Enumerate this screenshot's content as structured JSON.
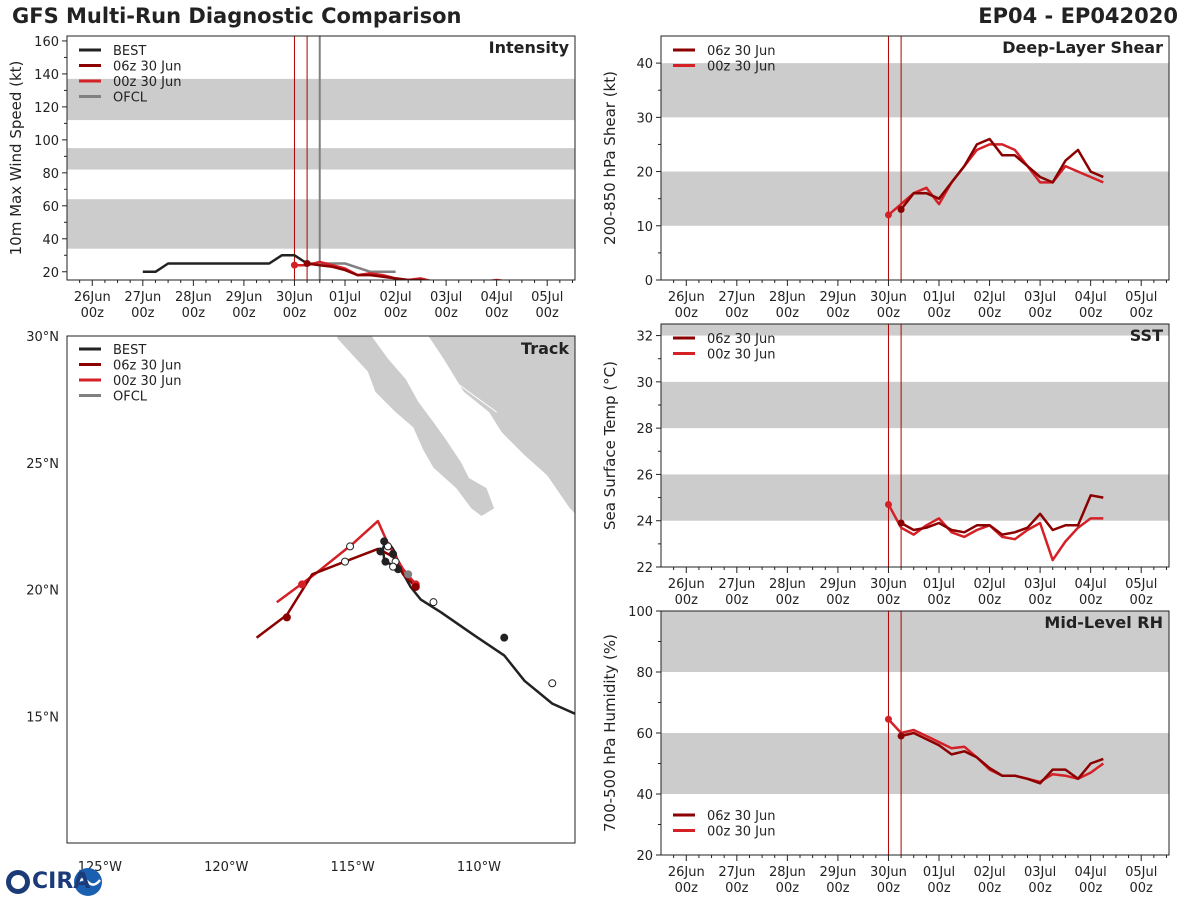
{
  "header": {
    "title": "GFS Multi-Run Diagnostic Comparison",
    "storm_id": "EP04 - EP042020"
  },
  "logo": {
    "text": "CIRA",
    "emblem": "ra-wave-emblem-icon"
  },
  "colors": {
    "best": "#222222",
    "run_06z": "#8b0000",
    "run_00z": "#d42027",
    "ofcl": "#808080",
    "band": "#cccccc",
    "land": "#cccccc",
    "vline": "#b00000",
    "ofcl_vline": "#808080"
  },
  "time_axis": {
    "ticks": [
      {
        "day": 26,
        "l1": "26Jun",
        "l2": "00z"
      },
      {
        "day": 27,
        "l1": "27Jun",
        "l2": "00z"
      },
      {
        "day": 28,
        "l1": "28Jun",
        "l2": "00z"
      },
      {
        "day": 29,
        "l1": "29Jun",
        "l2": "00z"
      },
      {
        "day": 30,
        "l1": "30Jun",
        "l2": "00z"
      },
      {
        "day": 31,
        "l1": "01Jul",
        "l2": "00z"
      },
      {
        "day": 32,
        "l1": "02Jul",
        "l2": "00z"
      },
      {
        "day": 33,
        "l1": "03Jul",
        "l2": "00z"
      },
      {
        "day": 34,
        "l1": "04Jul",
        "l2": "00z"
      },
      {
        "day": 35,
        "l1": "05Jul",
        "l2": "00z"
      }
    ]
  },
  "chart_data": [
    {
      "id": "intensity",
      "type": "line",
      "title": "Intensity",
      "ylabel": "10m Max Wind Speed (kt)",
      "xlim": [
        25.5,
        35.55
      ],
      "ylim": [
        15,
        163
      ],
      "yticks": [
        20,
        40,
        60,
        80,
        100,
        120,
        140,
        160
      ],
      "bands": [
        [
          34,
          64
        ],
        [
          82,
          95
        ],
        [
          112,
          137
        ]
      ],
      "vlines": [
        {
          "x": 30.0,
          "kind": "run"
        },
        {
          "x": 30.25,
          "kind": "run"
        },
        {
          "x": 30.5,
          "kind": "ofcl"
        }
      ],
      "legend": [
        "BEST",
        "06z 30 Jun",
        "00z 30 Jun",
        "OFCL"
      ],
      "series": [
        {
          "name": "BEST",
          "color_key": "best",
          "x": [
            27.0,
            27.25,
            27.5,
            27.75,
            28.0,
            28.25,
            28.5,
            28.75,
            29.0,
            29.25,
            29.5,
            29.75,
            30.0,
            30.25
          ],
          "y": [
            20,
            20,
            25,
            25,
            25,
            25,
            25,
            25,
            25,
            25,
            25,
            30,
            30,
            25
          ]
        },
        {
          "name": "OFCL",
          "color_key": "ofcl",
          "x": [
            30.25,
            30.5,
            31.0,
            31.5,
            32.0
          ],
          "y": [
            25,
            25,
            25,
            20,
            20
          ]
        },
        {
          "name": "00z 30 Jun",
          "color_key": "run_00z",
          "x": [
            30.0,
            30.25,
            30.5,
            30.75,
            31.0,
            31.25,
            31.5,
            31.75,
            32.0,
            32.25,
            32.5,
            32.75,
            33.0,
            33.25,
            33.5,
            33.75,
            34.0,
            34.25
          ],
          "y": [
            24,
            24,
            26,
            24,
            22,
            18,
            19,
            18,
            16,
            15,
            16,
            14,
            14,
            14,
            14,
            14,
            15,
            14
          ]
        },
        {
          "name": "06z 30 Jun",
          "color_key": "run_06z",
          "x": [
            30.25,
            30.5,
            30.75,
            31.0,
            31.25,
            31.5,
            31.75,
            32.0,
            32.25,
            32.5,
            32.75,
            33.0,
            33.25,
            33.5,
            33.75,
            34.0,
            34.25
          ],
          "y": [
            25,
            24,
            23,
            21,
            18,
            18,
            17,
            16,
            15,
            15,
            14,
            14,
            14,
            14,
            14,
            14,
            14
          ]
        }
      ],
      "markers": [
        {
          "series": "00z 30 Jun",
          "x": 30.0,
          "y": 24
        },
        {
          "series": "06z 30 Jun",
          "x": 30.25,
          "y": 25
        }
      ]
    },
    {
      "id": "shear",
      "type": "line",
      "title": "Deep-Layer Shear",
      "ylabel": "200-850 hPa Shear (kt)",
      "xlim": [
        25.5,
        35.55
      ],
      "ylim": [
        0,
        45
      ],
      "yticks": [
        0,
        10,
        20,
        30,
        40
      ],
      "bands": [
        [
          10,
          20
        ],
        [
          30,
          40
        ]
      ],
      "vlines": [
        {
          "x": 30.0,
          "kind": "run"
        },
        {
          "x": 30.25,
          "kind": "run"
        }
      ],
      "legend": [
        "06z 30 Jun",
        "00z 30 Jun"
      ],
      "series": [
        {
          "name": "00z 30 Jun",
          "color_key": "run_00z",
          "x": [
            30.0,
            30.25,
            30.5,
            30.75,
            31.0,
            31.25,
            31.5,
            31.75,
            32.0,
            32.25,
            32.5,
            32.75,
            33.0,
            33.25,
            33.5,
            33.75,
            34.0,
            34.25
          ],
          "y": [
            12,
            14,
            16,
            17,
            14,
            18,
            21,
            24,
            25,
            25,
            24,
            21,
            18,
            18,
            21,
            20,
            19,
            18
          ]
        },
        {
          "name": "06z 30 Jun",
          "color_key": "run_06z",
          "x": [
            30.25,
            30.5,
            30.75,
            31.0,
            31.25,
            31.5,
            31.75,
            32.0,
            32.25,
            32.5,
            32.75,
            33.0,
            33.25,
            33.5,
            33.75,
            34.0,
            34.25
          ],
          "y": [
            13,
            16,
            16,
            15,
            18,
            21,
            25,
            26,
            23,
            23,
            21,
            19,
            18,
            22,
            24,
            20,
            19
          ]
        }
      ],
      "markers": [
        {
          "series": "00z 30 Jun",
          "x": 30.0,
          "y": 12
        },
        {
          "series": "06z 30 Jun",
          "x": 30.25,
          "y": 13
        }
      ]
    },
    {
      "id": "sst",
      "type": "line",
      "title": "SST",
      "ylabel": "Sea Surface Temp (°C)",
      "xlim": [
        25.5,
        35.55
      ],
      "ylim": [
        22,
        32.5
      ],
      "yticks": [
        22,
        24,
        26,
        28,
        30,
        32
      ],
      "bands": [
        [
          24,
          26
        ],
        [
          28,
          30
        ],
        [
          32,
          32.5
        ]
      ],
      "vlines": [
        {
          "x": 30.0,
          "kind": "run"
        },
        {
          "x": 30.25,
          "kind": "run"
        }
      ],
      "legend": [
        "06z 30 Jun",
        "00z 30 Jun"
      ],
      "series": [
        {
          "name": "00z 30 Jun",
          "color_key": "run_00z",
          "x": [
            30.0,
            30.25,
            30.5,
            30.75,
            31.0,
            31.25,
            31.5,
            31.75,
            32.0,
            32.25,
            32.5,
            32.75,
            33.0,
            33.25,
            33.5,
            33.75,
            34.0,
            34.25
          ],
          "y": [
            24.7,
            23.7,
            23.4,
            23.8,
            24.1,
            23.5,
            23.3,
            23.6,
            23.8,
            23.3,
            23.2,
            23.6,
            23.9,
            22.3,
            23.1,
            23.7,
            24.1,
            24.1
          ]
        },
        {
          "name": "06z 30 Jun",
          "color_key": "run_06z",
          "x": [
            30.25,
            30.5,
            30.75,
            31.0,
            31.25,
            31.5,
            31.75,
            32.0,
            32.25,
            32.5,
            32.75,
            33.0,
            33.25,
            33.5,
            33.75,
            34.0,
            34.25
          ],
          "y": [
            23.9,
            23.6,
            23.7,
            23.9,
            23.6,
            23.5,
            23.8,
            23.8,
            23.4,
            23.5,
            23.7,
            24.3,
            23.6,
            23.8,
            23.8,
            25.1,
            25.0
          ]
        }
      ],
      "markers": [
        {
          "series": "00z 30 Jun",
          "x": 30.0,
          "y": 24.7
        },
        {
          "series": "06z 30 Jun",
          "x": 30.25,
          "y": 23.9
        }
      ]
    },
    {
      "id": "rh",
      "type": "line",
      "title": "Mid-Level RH",
      "ylabel": "700-500 hPa Humidity (%)",
      "xlim": [
        25.5,
        35.55
      ],
      "ylim": [
        20,
        100
      ],
      "yticks": [
        20,
        40,
        60,
        80,
        100
      ],
      "bands": [
        [
          40,
          60
        ],
        [
          80,
          100
        ]
      ],
      "vlines": [
        {
          "x": 30.0,
          "kind": "run"
        },
        {
          "x": 30.25,
          "kind": "run"
        }
      ],
      "legend": [
        "06z 30 Jun",
        "00z 30 Jun"
      ],
      "series": [
        {
          "name": "00z 30 Jun",
          "color_key": "run_00z",
          "x": [
            30.0,
            30.25,
            30.5,
            30.75,
            31.0,
            31.25,
            31.5,
            31.75,
            32.0,
            32.25,
            32.5,
            32.75,
            33.0,
            33.25,
            33.5,
            33.75,
            34.0,
            34.25
          ],
          "y": [
            64.5,
            60,
            61,
            59,
            57,
            55,
            55.5,
            52,
            48,
            46,
            46,
            45,
            44,
            46.5,
            46,
            45,
            47,
            50
          ]
        },
        {
          "name": "06z 30 Jun",
          "color_key": "run_06z",
          "x": [
            30.25,
            30.5,
            30.75,
            31.0,
            31.25,
            31.5,
            31.75,
            32.0,
            32.25,
            32.5,
            32.75,
            33.0,
            33.25,
            33.5,
            33.75,
            34.0,
            34.25
          ],
          "y": [
            59,
            60,
            58,
            56,
            53,
            54,
            52,
            48.5,
            46,
            46,
            45,
            43.5,
            48,
            48,
            45,
            50,
            51.5
          ]
        }
      ],
      "markers": [
        {
          "series": "00z 30 Jun",
          "x": 30.0,
          "y": 64.5
        },
        {
          "series": "06z 30 Jun",
          "x": 30.25,
          "y": 59
        }
      ]
    },
    {
      "id": "track",
      "type": "scatter",
      "title": "Track",
      "legend": [
        "BEST",
        "06z 30 Jun",
        "00z 30 Jun",
        "OFCL"
      ],
      "lon_range": [
        -126.3,
        -106.2
      ],
      "lat_range": [
        10.0,
        30.0
      ],
      "xticks": [
        {
          "v": -125,
          "label": "125°W"
        },
        {
          "v": -120,
          "label": "120°W"
        },
        {
          "v": -115,
          "label": "115°W"
        },
        {
          "v": -110,
          "label": "110°W"
        }
      ],
      "yticks": [
        {
          "v": 15,
          "label": "15°N"
        },
        {
          "v": 20,
          "label": "20°N"
        },
        {
          "v": 25,
          "label": "25°N"
        },
        {
          "v": 30,
          "label": "30°N"
        }
      ],
      "series": [
        {
          "name": "BEST",
          "color_key": "best",
          "lon": [
            -106.2,
            -107.1,
            -108.2,
            -109.0,
            -110.2,
            -111.5,
            -112.3,
            -112.7,
            -113.1,
            -113.2,
            -113.25,
            -113.3,
            -113.4,
            -113.55,
            -113.7,
            -113.8,
            -113.75,
            -113.6,
            -113.4,
            -113.2,
            -113.0
          ],
          "lat": [
            15.1,
            15.5,
            16.4,
            17.4,
            18.2,
            19.1,
            19.6,
            20.1,
            20.8,
            21.0,
            21.2,
            21.4,
            21.6,
            21.8,
            21.9,
            21.6,
            21.2,
            21.05,
            20.95,
            20.9,
            20.7
          ],
          "dots": [
            {
              "lon": -107.1,
              "lat": 16.3,
              "open": true
            },
            {
              "lon": -109.0,
              "lat": 18.1,
              "open": false
            },
            {
              "lon": -111.8,
              "lat": 19.5,
              "open": true
            },
            {
              "lon": -113.2,
              "lat": 20.8,
              "open": false
            },
            {
              "lon": -113.3,
              "lat": 21.1,
              "open": true
            },
            {
              "lon": -113.4,
              "lat": 21.4,
              "open": false
            },
            {
              "lon": -113.6,
              "lat": 21.7,
              "open": true
            },
            {
              "lon": -113.75,
              "lat": 21.9,
              "open": false
            },
            {
              "lon": -113.9,
              "lat": 21.5,
              "open": false
            },
            {
              "lon": -113.7,
              "lat": 21.1,
              "open": false
            },
            {
              "lon": -113.4,
              "lat": 20.9,
              "open": true
            }
          ]
        },
        {
          "name": "OFCL",
          "color_key": "ofcl",
          "lon": [
            -112.8,
            -113.0
          ],
          "lat": [
            20.4,
            20.6
          ],
          "dots": [
            {
              "lon": -112.8,
              "lat": 20.6,
              "open": false
            }
          ]
        },
        {
          "name": "00z 30 Jun",
          "color_key": "run_00z",
          "lon": [
            -112.5,
            -113.0,
            -113.6,
            -114.0,
            -115.0,
            -116.5,
            -118.0
          ],
          "lat": [
            20.2,
            20.8,
            21.8,
            22.7,
            21.8,
            20.6,
            19.5
          ],
          "dots": [
            {
              "lon": -112.5,
              "lat": 20.2,
              "open": false
            },
            {
              "lon": -115.1,
              "lat": 21.7,
              "open": true
            },
            {
              "lon": -117.0,
              "lat": 20.2,
              "open": false
            }
          ]
        },
        {
          "name": "06z 30 Jun",
          "color_key": "run_06z",
          "lon": [
            -112.5,
            -113.0,
            -113.4,
            -114.0,
            -115.3,
            -116.6,
            -117.6,
            -118.8
          ],
          "lat": [
            20.1,
            20.6,
            21.3,
            21.6,
            21.1,
            20.6,
            19.0,
            18.1
          ],
          "dots": [
            {
              "lon": -112.5,
              "lat": 20.1,
              "open": false
            },
            {
              "lon": -115.3,
              "lat": 21.1,
              "open": true
            },
            {
              "lon": -117.6,
              "lat": 18.9,
              "open": false
            }
          ]
        }
      ]
    }
  ]
}
